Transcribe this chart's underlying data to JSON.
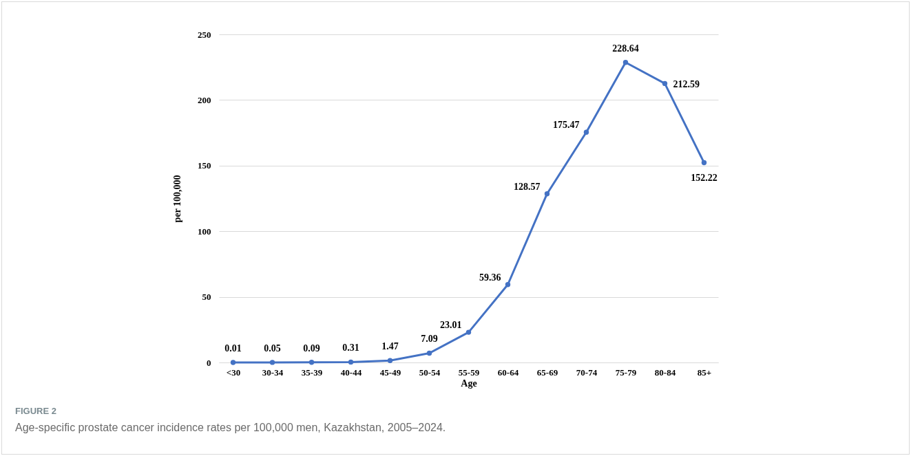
{
  "chart_data": {
    "type": "line",
    "categories": [
      "<30",
      "30-34",
      "35-39",
      "40-44",
      "45-49",
      "50-54",
      "55-59",
      "60-64",
      "65-69",
      "70-74",
      "75-79",
      "80-84",
      "85+"
    ],
    "series": [
      {
        "color": "#4472c4",
        "values": [
          0.01,
          0.05,
          0.09,
          0.31,
          1.47,
          7.09,
          23.01,
          59.36,
          128.57,
          175.47,
          228.64,
          212.59,
          152.22
        ]
      }
    ],
    "xlabel": "Age",
    "ylabel": "per 100,000",
    "ylim": [
      0,
      250
    ],
    "yticks": [
      0,
      50,
      100,
      150,
      200,
      250
    ],
    "grid": "y",
    "marker": "circle",
    "line_style": "solid",
    "data_labels": true,
    "annotations": [
      "FIGURE 2",
      "Age-specific prostate cancer incidence rates per 100,000 men, Kazakhstan, 2005–2024."
    ]
  }
}
